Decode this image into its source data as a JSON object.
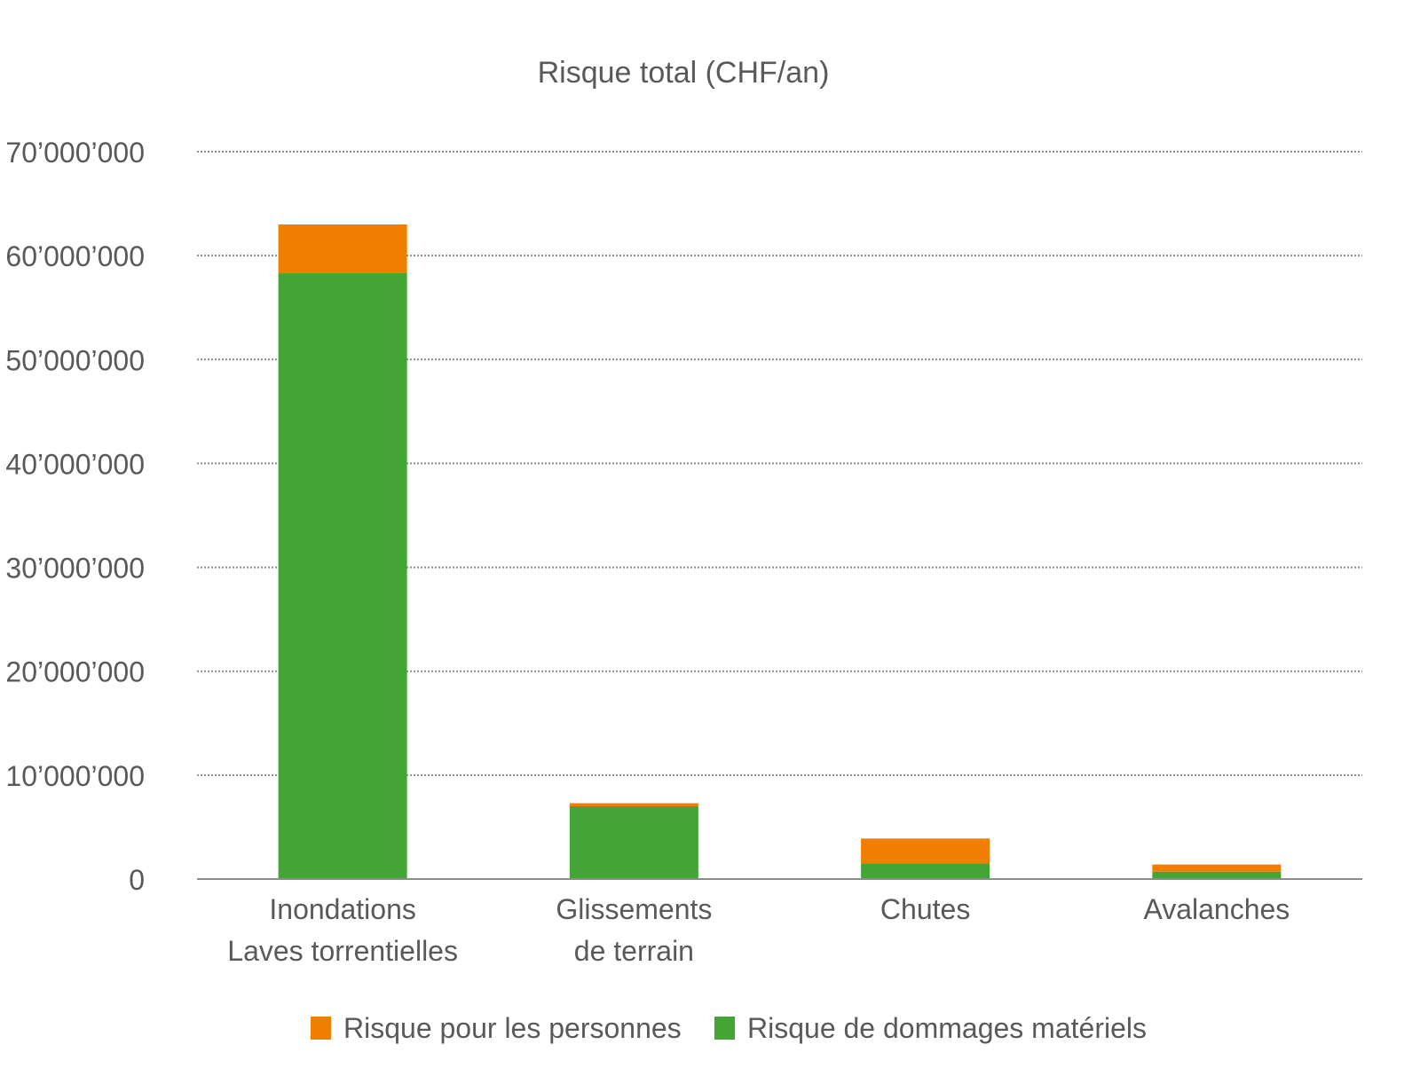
{
  "chart_data": {
    "type": "bar",
    "stacked": true,
    "title": "Risque total (CHF/an)",
    "xlabel": "",
    "ylabel": "",
    "categories": [
      [
        "Inondations",
        "Laves torrentielles"
      ],
      [
        "Glissements",
        "de terrain"
      ],
      [
        "Chutes"
      ],
      [
        "Avalanches"
      ]
    ],
    "series": [
      {
        "name": "Risque de dommages matériels",
        "color": "#42A535",
        "values": [
          58300000,
          7000000,
          1500000,
          700000
        ]
      },
      {
        "name": "Risque pour les personnes",
        "color": "#F07F00",
        "values": [
          4700000,
          300000,
          2400000,
          700000
        ]
      }
    ],
    "ylim": [
      0,
      70000000
    ],
    "yticks": [
      0,
      10000000,
      20000000,
      30000000,
      40000000,
      50000000,
      60000000,
      70000000
    ],
    "ytick_labels": [
      "0",
      "10’000’000",
      "20’000’000",
      "30’000’000",
      "40’000’000",
      "50’000’000",
      "60’000’000",
      "70’000’000"
    ],
    "legend_order": [
      "Risque pour les personnes",
      "Risque de dommages matériels"
    ],
    "legend_position": "bottom",
    "grid": true,
    "grid_style": "dotted"
  }
}
